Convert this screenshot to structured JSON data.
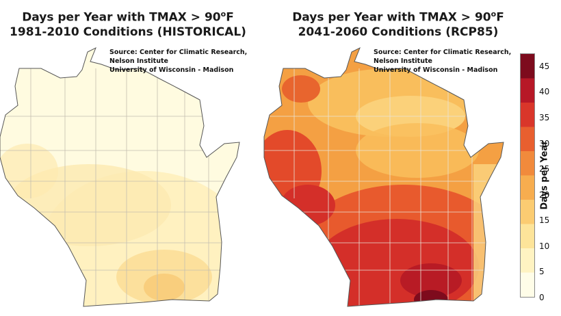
{
  "maps": [
    {
      "title_prefix": "Days per Year with TMAX > 90",
      "title_sup": "o",
      "title_suffix": "F",
      "title_line2": "1981-2010 Conditions (HISTORICAL)",
      "source": [
        "Source:  Center for Climatic Research,",
        "Nelson Institute",
        "University of Wisconsin - Madison"
      ]
    },
    {
      "title_prefix": "Days per Year with TMAX > 90",
      "title_sup": "o",
      "title_suffix": "F",
      "title_line2": "2041-2060 Conditions (RCP85)",
      "source": [
        "Source:  Center for Climatic Research,",
        "Nelson Institute",
        "University of Wisconsin - Madison"
      ]
    }
  ],
  "legend": {
    "label": "Days per Year",
    "ticks": [
      "0",
      "5",
      "10",
      "15",
      "20",
      "25",
      "30",
      "35",
      "40",
      "45"
    ],
    "colors": [
      "#fffde8",
      "#fff3c2",
      "#fde49a",
      "#fbcc72",
      "#f7ad4f",
      "#f18a3c",
      "#e85f2f",
      "#d9362a",
      "#b71827",
      "#7d0b1d"
    ]
  }
}
